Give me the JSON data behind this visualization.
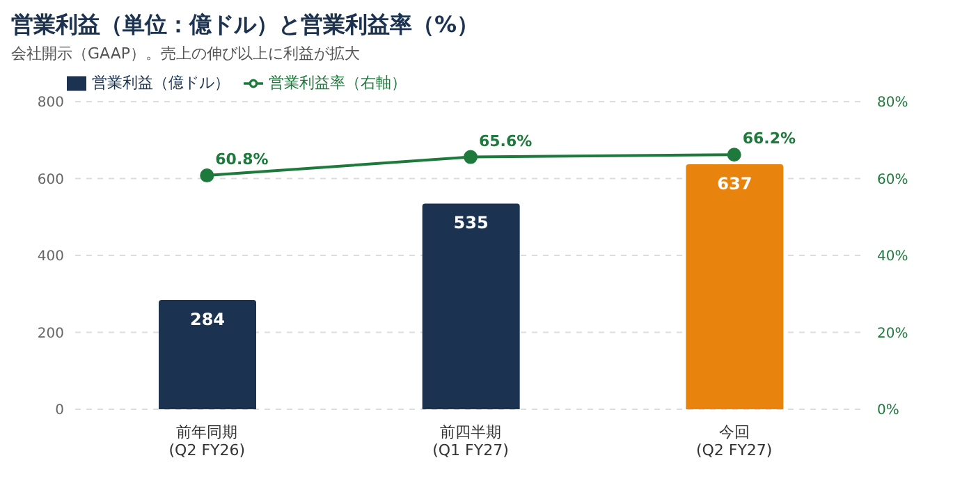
{
  "chart_data": {
    "type": "bar",
    "title": "営業利益（単位：億ドル）と営業利益率（%）",
    "subtitle": "会社開示（GAAP）。売上の伸び以上に利益が拡大",
    "categories": [
      "前年同期\n(Q2 FY26)",
      "前四半期\n(Q1 FY27)",
      "今回\n(Q2 FY27)"
    ],
    "series": [
      {
        "name": "営業利益（億ドル）",
        "color": "#1b3350",
        "colors": [
          "#1b3350",
          "#1b3350",
          "#e8830d"
        ],
        "values": [
          284,
          535,
          637
        ],
        "value_labels": [
          "284",
          "535",
          "637"
        ]
      },
      {
        "name": "営業利益率（右軸）",
        "type": "line",
        "axis": "y2",
        "color": "#1e7a3c",
        "values": [
          60.8,
          65.6,
          66.2
        ],
        "value_labels": [
          "60.8%",
          "65.6%",
          "66.2%"
        ]
      }
    ],
    "ylim": [
      0,
      800
    ],
    "yticks": [
      0,
      200,
      400,
      600,
      800
    ],
    "y2lim": [
      0,
      80
    ],
    "y2ticks": [
      {
        "value": 0,
        "label": "0%"
      },
      {
        "value": 20,
        "label": "20%"
      },
      {
        "value": 40,
        "label": "40%"
      },
      {
        "value": 60,
        "label": "60%"
      },
      {
        "value": 80,
        "label": "80%"
      }
    ],
    "grid": "y",
    "legend": "top left",
    "marker": "circle"
  }
}
